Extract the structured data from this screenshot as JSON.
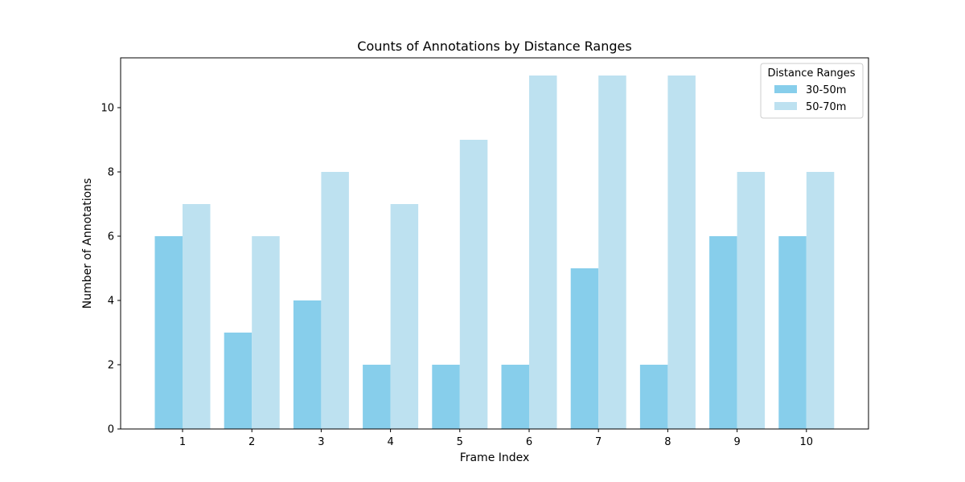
{
  "chart_data": {
    "type": "bar",
    "title": "Counts of Annotations by Distance Ranges",
    "xlabel": "Frame Index",
    "ylabel": "Number of Annotations",
    "categories": [
      "1",
      "2",
      "3",
      "4",
      "5",
      "6",
      "7",
      "8",
      "9",
      "10"
    ],
    "series": [
      {
        "name": "30-50m",
        "color": "#87ceeb",
        "values": [
          6,
          3,
          4,
          2,
          2,
          2,
          5,
          2,
          6,
          6
        ]
      },
      {
        "name": "50-70m",
        "color": "#bde1f0",
        "values": [
          7,
          6,
          8,
          7,
          9,
          11,
          11,
          11,
          8,
          8
        ]
      }
    ],
    "ylim": [
      0,
      11.55
    ],
    "yticks": [
      0,
      2,
      4,
      6,
      8,
      10
    ],
    "grid": false,
    "legend": {
      "title": "Distance Ranges",
      "placement": "top-right"
    }
  }
}
